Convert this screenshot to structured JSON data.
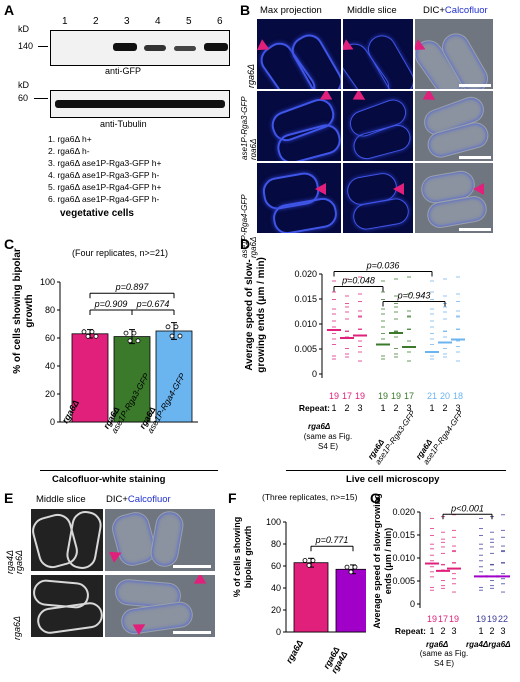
{
  "panelA": {
    "letter": "A",
    "kd": "kD",
    "lanes": [
      "1",
      "2",
      "3",
      "4",
      "5",
      "6"
    ],
    "mw_gfp": "140",
    "mw_tub": "60",
    "gfp_label": "anti-GFP",
    "tub_label": "anti-Tubulin",
    "legend": [
      "1. rga6Δ h+",
      "2. rga6Δ h-",
      "3. rga6Δ ase1P-Rga3-GFP h+",
      "4. rga6Δ ase1P-Rga3-GFP h-",
      "5. rga6Δ ase1P-Rga4-GFP h+",
      "6. rga6Δ ase1P-Rga4-GFP h-"
    ],
    "caption": "vegetative cells"
  },
  "panelB": {
    "letter": "B",
    "col1": "Max projection",
    "col2": "Middle slice",
    "col3_a": "DIC+",
    "col3_b": "Calcofluor",
    "row1": "rga6Δ",
    "row2a": "rga6Δ",
    "row2b": "ase1P-Rga3-GFP",
    "row3a": "rga6Δ",
    "row3b": "ase1P-Rga4-GFP"
  },
  "panelC": {
    "letter": "C",
    "subtitle": "(Four replicates, n>=21)",
    "ylabel": "% of cells showing bipolar growth",
    "xcaption": "Calcofluor-white staining",
    "p1": "p=0.897",
    "p2": "p=0.909",
    "p3": "p=0.674",
    "x1": "rga6Δ",
    "x2a": "rga6Δ",
    "x2b": "ase1P-Rga3-GFP",
    "x3a": "rga6Δ",
    "x3b": "ase1P-Rga4-GFP"
  },
  "panelD": {
    "letter": "D",
    "ylabel": "Average speed of slow-growing ends (μm / min)",
    "p1": "p=0.036",
    "p2": "p=0.048",
    "p3": "p=0.943",
    "repeat_label": "Repeat:",
    "reps": [
      "1",
      "2",
      "3",
      "1",
      "2",
      "3",
      "1",
      "2",
      "3"
    ],
    "ns": [
      "19",
      "17",
      "19",
      "19",
      "19",
      "17",
      "21",
      "20",
      "18"
    ],
    "g1": "rga6Δ",
    "g1note": "(same as Fig. S4 E)",
    "g2a": "rga6Δ",
    "g2b": "ase1P-Rga3-GFP",
    "g3a": "rga6Δ",
    "g3b": "ase1P-Rga4-GFP",
    "xcaption": "Live cell microscopy"
  },
  "panelE": {
    "letter": "E",
    "col1": "Middle slice",
    "col2a": "DIC+",
    "col2b": "Calcofluor",
    "row1a": "rga4Δ",
    "row1b": "rga6Δ",
    "row2": "rga6Δ"
  },
  "panelF": {
    "letter": "F",
    "subtitle": "(Three replicates, n>=15)",
    "ylabel": "% of cells showing bipolar growth",
    "p": "p=0.771",
    "x1": "rga6Δ",
    "x2a": "rga6Δ",
    "x2b": "rga4Δ"
  },
  "panelG": {
    "letter": "G",
    "ylabel": "Average speed of slow-growing ends (μm / min)",
    "p": "p<0.001",
    "repeat_label": "Repeat:",
    "reps": [
      "1",
      "2",
      "3",
      "1",
      "2",
      "3"
    ],
    "ns": [
      "19",
      "17",
      "19",
      "19",
      "19",
      "22"
    ],
    "g1": "rga6Δ",
    "g1note": "(same as Fig. S4 E)",
    "g2": "rga4Δrga6Δ"
  },
  "colors": {
    "magenta": "#e0207a",
    "green": "#3a7a2a",
    "blue": "#6ab4f0",
    "navy": "#3a3a9a",
    "purple": "#a000c8"
  },
  "chart_data": [
    {
      "type": "bar",
      "title": "(Four replicates, n>=21)",
      "categories": [
        "rga6Δ",
        "rga6Δ ase1P-Rga3-GFP",
        "rga6Δ ase1P-Rga4-GFP"
      ],
      "values": [
        63,
        61,
        65
      ],
      "errors": [
        3,
        5,
        6
      ],
      "ylabel": "% of cells showing bipolar growth",
      "ylim": [
        0,
        100
      ],
      "yticks": [
        0,
        20,
        40,
        60,
        80,
        100
      ],
      "colors": [
        "#e0207a",
        "#3a7a2a",
        "#6ab4f0"
      ]
    },
    {
      "type": "scatter",
      "title": "",
      "ylabel": "Average speed of slow-growing ends (μm / min)",
      "ylim": [
        0,
        0.02
      ],
      "yticks": [
        0,
        0.005,
        0.01,
        0.015,
        0.02
      ],
      "ytick_labels": [
        "0",
        "0.005",
        "0.010",
        "0.015",
        "0.020"
      ],
      "series": [
        {
          "name": "rga6Δ",
          "means": [
            0.0088,
            0.0072,
            0.0077
          ]
        },
        {
          "name": "rga6Δ ase1P-Rga3-GFP",
          "means": [
            0.0059,
            0.0082,
            0.0054
          ]
        },
        {
          "name": "rga6Δ ase1P-Rga4-GFP",
          "means": [
            0.0044,
            0.0063,
            0.0069
          ]
        }
      ]
    },
    {
      "type": "bar",
      "title": "(Three replicates, n>=15)",
      "categories": [
        "rga6Δ",
        "rga4Δ rga6Δ"
      ],
      "values": [
        63,
        57
      ],
      "errors": [
        4,
        4
      ],
      "ylabel": "% of cells showing bipolar growth",
      "ylim": [
        0,
        100
      ],
      "yticks": [
        0,
        20,
        40,
        60,
        80,
        100
      ],
      "colors": [
        "#e0207a",
        "#a000c8"
      ]
    },
    {
      "type": "scatter",
      "title": "",
      "ylabel": "Average speed of slow-growing ends (μm / min)",
      "ylim": [
        0,
        0.02
      ],
      "yticks": [
        0,
        0.005,
        0.01,
        0.015,
        0.02
      ],
      "ytick_labels": [
        "0",
        "0.005",
        "0.010",
        "0.015",
        "0.020"
      ],
      "series": [
        {
          "name": "rga6Δ",
          "means": [
            0.0088,
            0.0072,
            0.0077
          ]
        },
        {
          "name": "rga4Δrga6Δ",
          "means": [
            0.006,
            0.006,
            0.006
          ]
        }
      ]
    }
  ]
}
